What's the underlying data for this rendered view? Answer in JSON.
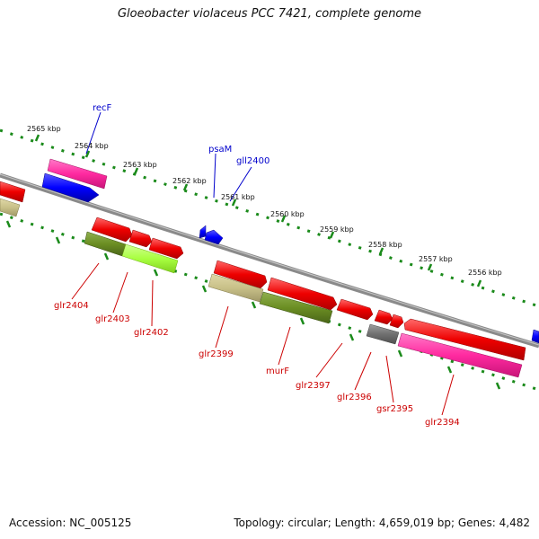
{
  "title": "Gloeobacter violaceus PCC 7421, complete genome",
  "footer": {
    "accession": "Accession: NC_005125",
    "summary": "Topology: circular; Length: 4,659,019 bp; Genes: 4,482"
  },
  "colors": {
    "background": "#ffffff",
    "backbone": "#8a8a8a",
    "tick": "#1a8a1a",
    "label_red": "#cc0000",
    "label_blue": "#0000cc",
    "red": "#ee0000",
    "magenta": "#ff2aa0",
    "blue": "#0000ff",
    "olive": "#6b8e23",
    "lime": "#a8ff40",
    "khaki": "#c8c088",
    "gray": "#707070"
  },
  "scale": {
    "ticks": [
      "2565 kbp",
      "2564 kbp",
      "2563 kbp",
      "2562 kbp",
      "2561 kbp",
      "2560 kbp",
      "2559 kbp",
      "2558 kbp",
      "2557 kbp",
      "2556 kbp"
    ]
  },
  "genes": [
    {
      "label": "recF",
      "color": "blue",
      "track": "outer"
    },
    {
      "label": "psaM",
      "color": "blue",
      "track": "backbone"
    },
    {
      "label": "gll2400",
      "color": "blue",
      "track": "backbone"
    },
    {
      "label": "glr2404",
      "color": "red",
      "track": "inner"
    },
    {
      "label": "glr2403",
      "color": "red",
      "track": "inner"
    },
    {
      "label": "glr2402",
      "color": "red",
      "track": "inner"
    },
    {
      "label": "glr2399",
      "color": "red",
      "track": "inner"
    },
    {
      "label": "murF",
      "color": "red",
      "track": "inner"
    },
    {
      "label": "glr2397",
      "color": "red",
      "track": "inner"
    },
    {
      "label": "glr2396",
      "color": "red",
      "track": "inner"
    },
    {
      "label": "gsr2395",
      "color": "red",
      "track": "inner"
    },
    {
      "label": "glr2394",
      "color": "red",
      "track": "inner"
    }
  ]
}
